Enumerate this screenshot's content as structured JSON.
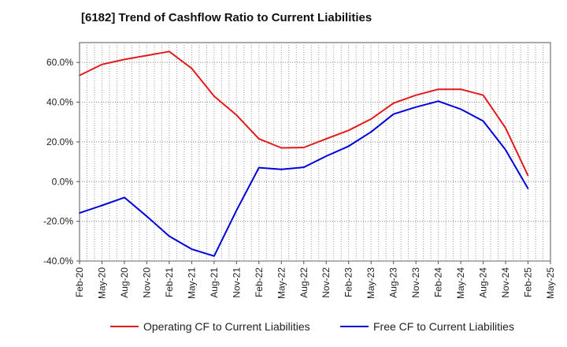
{
  "chart_data": {
    "type": "line",
    "title": "[6182]  Trend of Cashflow Ratio to Current Liabilities",
    "xlabel": "",
    "ylabel": "",
    "ylim": [
      -40,
      70
    ],
    "y_ticks": [
      "60.0%",
      "40.0%",
      "20.0%",
      "0.0%",
      "-20.0%",
      "-40.0%"
    ],
    "y_tick_values": [
      60,
      40,
      20,
      0,
      -20,
      -40
    ],
    "x_tick_labels": [
      "Feb-20",
      "May-20",
      "Aug-20",
      "Nov-20",
      "Feb-21",
      "May-21",
      "Aug-21",
      "Nov-21",
      "Feb-22",
      "May-22",
      "Aug-22",
      "Nov-22",
      "Feb-23",
      "May-23",
      "Aug-23",
      "Nov-23",
      "Feb-24",
      "May-24",
      "Aug-24",
      "Nov-24",
      "Feb-25",
      "May-25"
    ],
    "x": [
      "Feb-20",
      "May-20",
      "Aug-20",
      "Nov-20",
      "Feb-21",
      "May-21",
      "Aug-21",
      "Nov-21",
      "Feb-22",
      "May-22",
      "Aug-22",
      "Nov-22",
      "Feb-23",
      "May-23",
      "Aug-23",
      "Nov-23",
      "Feb-24",
      "May-24",
      "Aug-24",
      "Nov-24",
      "Feb-25"
    ],
    "grid": true,
    "legend_position": "bottom",
    "series": [
      {
        "name": "Operating CF to Current Liabilities",
        "color": "#e31a1c",
        "values": [
          53.5,
          59,
          61.5,
          63.5,
          65.5,
          57,
          43,
          33.5,
          21.5,
          17,
          17.2,
          21.5,
          25.8,
          31.5,
          39.5,
          43.5,
          46.5,
          46.5,
          43.5,
          27,
          3
        ]
      },
      {
        "name": "Free CF to Current Liabilities",
        "color": "#0000dd",
        "values": [
          -15.8,
          -12,
          -8,
          -17.5,
          -27.5,
          -34,
          -37.5,
          -14.5,
          7,
          6.2,
          7.2,
          12.8,
          17.8,
          25,
          34,
          37.5,
          40.5,
          36.5,
          30.5,
          16,
          -3.5
        ]
      }
    ]
  }
}
